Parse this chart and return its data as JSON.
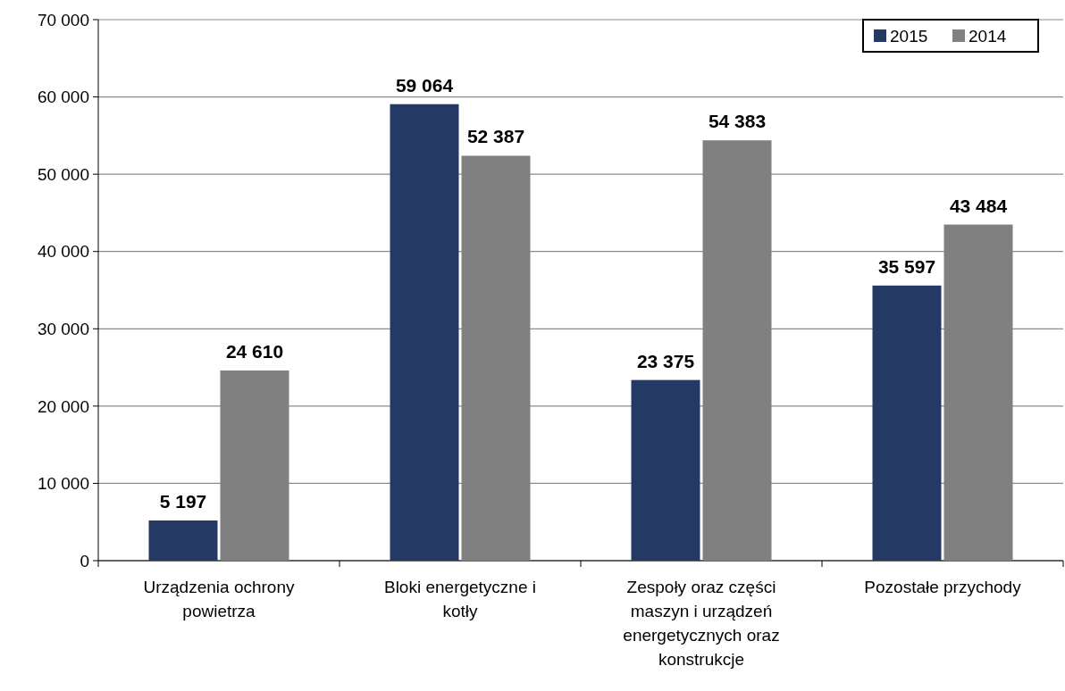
{
  "chart_data": {
    "type": "bar",
    "categories": [
      "Urządzenia ochrony powietrza",
      "Bloki energetyczne i kotły",
      "Zespoły oraz części maszyn i urządzeń energetycznych oraz konstrukcje",
      "Pozostałe przychody"
    ],
    "series": [
      {
        "name": "2015",
        "color": "#243a64",
        "values": [
          5197,
          59064,
          23375,
          35597
        ],
        "value_labels": [
          "5 197",
          "59 064",
          "23 375",
          "35 597"
        ]
      },
      {
        "name": "2014",
        "color": "#808080",
        "values": [
          24610,
          52387,
          54383,
          43484
        ],
        "value_labels": [
          "24 610",
          "52 387",
          "54 383",
          "43 484"
        ]
      }
    ],
    "ylim": [
      0,
      70000
    ],
    "yticks": [
      {
        "value": 0,
        "label": "0"
      },
      {
        "value": 10000,
        "label": "10 000"
      },
      {
        "value": 20000,
        "label": "20 000"
      },
      {
        "value": 30000,
        "label": "30 000"
      },
      {
        "value": 40000,
        "label": "40 000"
      },
      {
        "value": 50000,
        "label": "50 000"
      },
      {
        "value": 60000,
        "label": "60 000"
      },
      {
        "value": 70000,
        "label": "70 000"
      }
    ],
    "grid": "y",
    "legend": "top right"
  }
}
